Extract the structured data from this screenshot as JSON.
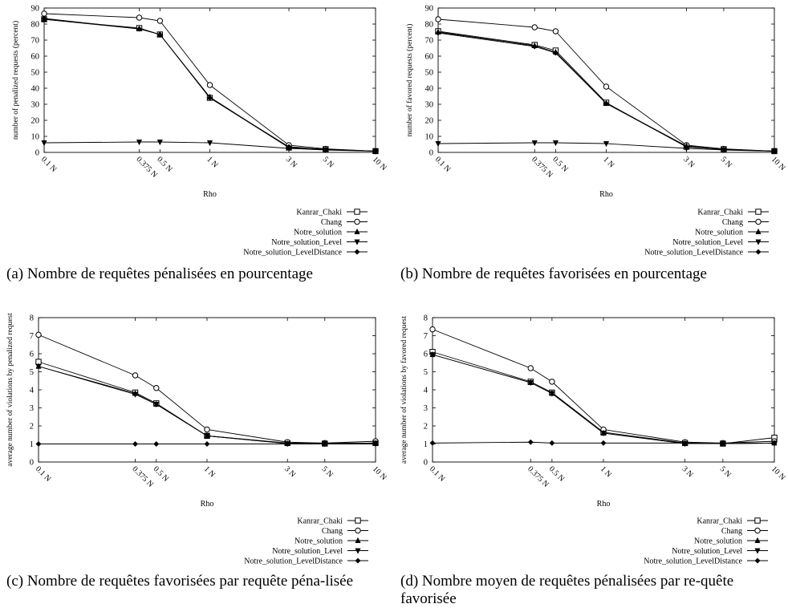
{
  "chart_data": [
    {
      "type": "line",
      "xlabel": "Rho",
      "ylabel": "number of penalized requests (percent)",
      "x_tick_labels": [
        "0.1 N",
        "0.375 N",
        "0.5 N",
        "1 N",
        "3 N",
        "5 N",
        "10 N"
      ],
      "x": [
        0.1,
        0.375,
        0.5,
        1,
        3,
        5,
        10
      ],
      "x_scale": "log",
      "ylim": [
        0,
        90
      ],
      "y_ticks": [
        0,
        10,
        20,
        30,
        40,
        50,
        60,
        70,
        80,
        90
      ],
      "legend_position": "bottom-right",
      "series": [
        {
          "name": "Kanrar_Chaki",
          "marker": "square",
          "values": [
            83,
            77.5,
            73.5,
            34,
            3,
            2,
            0.8
          ]
        },
        {
          "name": "Chang",
          "marker": "circle",
          "values": [
            86.5,
            84,
            82,
            42,
            4.5,
            2.2,
            0.8
          ]
        },
        {
          "name": "Notre_solution",
          "marker": "triangle-up",
          "values": [
            83,
            77,
            73.5,
            34.5,
            3,
            1.8,
            0.8
          ]
        },
        {
          "name": "Notre_solution_Level",
          "marker": "triangle-down",
          "values": [
            6,
            6.5,
            6.5,
            6,
            2.5,
            1.5,
            0.7
          ]
        },
        {
          "name": "Notre_solution_LevelDistance",
          "marker": "diamond",
          "values": [
            83.5,
            77,
            73.5,
            34,
            3.5,
            1.8,
            0.8
          ]
        }
      ],
      "caption": "(a) Nombre de requêtes pénalisées en pourcentage"
    },
    {
      "type": "line",
      "xlabel": "Rho",
      "ylabel": "number of favored requests (percent)",
      "x_tick_labels": [
        "0.1 N",
        "0.375 N",
        "0.5 N",
        "1 N",
        "3 N",
        "5 N",
        "10 N"
      ],
      "x": [
        0.1,
        0.375,
        0.5,
        1,
        3,
        5,
        10
      ],
      "x_scale": "log",
      "ylim": [
        0,
        90
      ],
      "y_ticks": [
        0,
        10,
        20,
        30,
        40,
        50,
        60,
        70,
        80,
        90
      ],
      "legend_position": "bottom-right",
      "series": [
        {
          "name": "Kanrar_Chaki",
          "marker": "square",
          "values": [
            75.5,
            67,
            63.5,
            31,
            3.5,
            2,
            0.8
          ]
        },
        {
          "name": "Chang",
          "marker": "circle",
          "values": [
            83,
            78,
            75.5,
            41,
            4.5,
            2.2,
            0.8
          ]
        },
        {
          "name": "Notre_solution",
          "marker": "triangle-up",
          "values": [
            75,
            66.5,
            62.5,
            30.5,
            4,
            1.8,
            0.8
          ]
        },
        {
          "name": "Notre_solution_Level",
          "marker": "triangle-down",
          "values": [
            5.5,
            6,
            6,
            5.5,
            2.5,
            1.5,
            0.7
          ]
        },
        {
          "name": "Notre_solution_LevelDistance",
          "marker": "diamond",
          "values": [
            74.5,
            66,
            62,
            30.5,
            3.5,
            1.8,
            0.8
          ]
        }
      ],
      "caption": "(b) Nombre de requêtes favorisées en pourcentage"
    },
    {
      "type": "line",
      "xlabel": "Rho",
      "ylabel": "average number of violations by penalized request",
      "x_tick_labels": [
        "0.1 N",
        "0.375 N",
        "0.5 N",
        "1 N",
        "3 N",
        "5 N",
        "10 N"
      ],
      "x": [
        0.1,
        0.375,
        0.5,
        1,
        3,
        5,
        10
      ],
      "x_scale": "log",
      "ylim": [
        0,
        8
      ],
      "y_ticks": [
        0,
        1,
        2,
        3,
        4,
        5,
        6,
        7,
        8
      ],
      "legend_position": "bottom-right",
      "series": [
        {
          "name": "Kanrar_Chaki",
          "marker": "square",
          "values": [
            5.55,
            3.85,
            3.25,
            1.45,
            1.05,
            1.02,
            1.05
          ]
        },
        {
          "name": "Chang",
          "marker": "circle",
          "values": [
            7.05,
            4.8,
            4.1,
            1.8,
            1.1,
            1.05,
            1.15
          ]
        },
        {
          "name": "Notre_solution",
          "marker": "triangle-up",
          "values": [
            5.3,
            3.8,
            3.2,
            1.45,
            1.02,
            1.02,
            1.05
          ]
        },
        {
          "name": "Notre_solution_Level",
          "marker": "triangle-down",
          "values": [
            5.3,
            3.75,
            3.2,
            1.45,
            1.02,
            1.02,
            1.05
          ]
        },
        {
          "name": "Notre_solution_LevelDistance",
          "marker": "diamond",
          "values": [
            1,
            1,
            1,
            1,
            1,
            1,
            1
          ]
        }
      ],
      "caption": "(c) Nombre de requêtes favorisées par requête péna-lisée"
    },
    {
      "type": "line",
      "xlabel": "Rho",
      "ylabel": "average number of violations by favored request",
      "x_tick_labels": [
        "0.1 N",
        "0.375 N",
        "0.5 N",
        "1 N",
        "3 N",
        "5 N",
        "10 N"
      ],
      "x": [
        0.1,
        0.375,
        0.5,
        1,
        3,
        5,
        10
      ],
      "x_scale": "log",
      "ylim": [
        0,
        8
      ],
      "y_ticks": [
        0,
        1,
        2,
        3,
        4,
        5,
        6,
        7,
        8
      ],
      "legend_position": "bottom-right",
      "series": [
        {
          "name": "Kanrar_Chaki",
          "marker": "square",
          "values": [
            6.1,
            4.45,
            3.85,
            1.65,
            1.05,
            1.02,
            1.35
          ]
        },
        {
          "name": "Chang",
          "marker": "circle",
          "values": [
            7.35,
            5.2,
            4.45,
            1.8,
            1.1,
            1.05,
            1.15
          ]
        },
        {
          "name": "Notre_solution",
          "marker": "triangle-up",
          "values": [
            5.95,
            4.4,
            3.8,
            1.6,
            1.02,
            1.02,
            1.05
          ]
        },
        {
          "name": "Notre_solution_Level",
          "marker": "triangle-down",
          "values": [
            5.95,
            4.4,
            3.8,
            1.6,
            1.02,
            1.02,
            1.05
          ]
        },
        {
          "name": "Notre_solution_LevelDistance",
          "marker": "diamond",
          "values": [
            1.05,
            1.1,
            1.05,
            1.05,
            1.05,
            1.02,
            1.05
          ]
        }
      ],
      "caption": "(d) Nombre moyen de requêtes pénalisées par re-quête favorisée"
    }
  ]
}
